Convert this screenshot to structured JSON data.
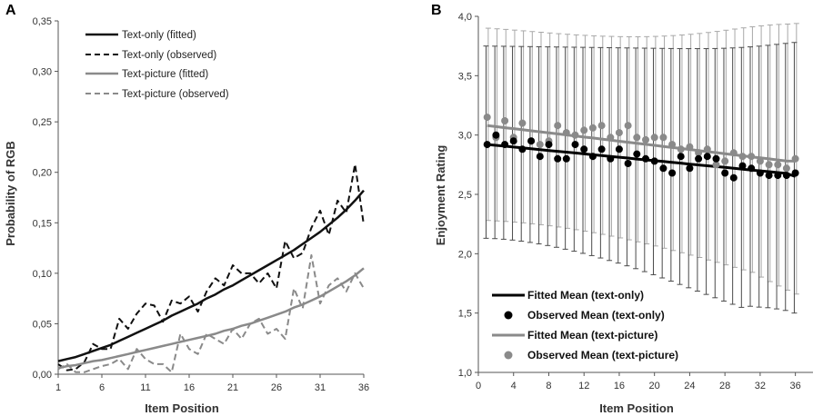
{
  "figure": {
    "panels": [
      "A",
      "B"
    ]
  },
  "chart_data": [
    {
      "panel": "A",
      "type": "line",
      "title": "",
      "xlabel": "Item Position",
      "ylabel": "Probability of RGB",
      "xlim": [
        1,
        36
      ],
      "ylim": [
        0,
        0.35
      ],
      "xticks": [
        "1",
        "6",
        "11",
        "16",
        "21",
        "26",
        "31",
        "36"
      ],
      "xtick_values": [
        1,
        6,
        11,
        16,
        21,
        26,
        31,
        36
      ],
      "yticks": [
        "0,00",
        "0,05",
        "0,10",
        "0,15",
        "0,20",
        "0,25",
        "0,30",
        "0,35"
      ],
      "ytick_values": [
        0,
        0.05,
        0.1,
        0.15,
        0.2,
        0.25,
        0.3,
        0.35
      ],
      "legend_position": "top-left",
      "x": [
        1,
        2,
        3,
        4,
        5,
        6,
        7,
        8,
        9,
        10,
        11,
        12,
        13,
        14,
        15,
        16,
        17,
        18,
        19,
        20,
        21,
        22,
        23,
        24,
        25,
        26,
        27,
        28,
        29,
        30,
        31,
        32,
        33,
        34,
        35,
        36
      ],
      "series": [
        {
          "name": "Text-only (fitted)",
          "color": "#111111",
          "dash": "solid",
          "values": [
            0.013,
            0.015,
            0.017,
            0.02,
            0.023,
            0.026,
            0.029,
            0.033,
            0.037,
            0.041,
            0.045,
            0.049,
            0.053,
            0.058,
            0.062,
            0.066,
            0.07,
            0.075,
            0.079,
            0.084,
            0.088,
            0.093,
            0.098,
            0.103,
            0.108,
            0.113,
            0.118,
            0.123,
            0.129,
            0.135,
            0.141,
            0.148,
            0.155,
            0.163,
            0.172,
            0.182
          ]
        },
        {
          "name": "Text-only (observed)",
          "color": "#111111",
          "dash": "dashed",
          "values": [
            0.01,
            0.004,
            0.005,
            0.012,
            0.03,
            0.025,
            0.025,
            0.055,
            0.045,
            0.06,
            0.07,
            0.068,
            0.052,
            0.073,
            0.07,
            0.077,
            0.062,
            0.082,
            0.095,
            0.088,
            0.108,
            0.1,
            0.1,
            0.09,
            0.1,
            0.085,
            0.132,
            0.115,
            0.12,
            0.145,
            0.162,
            0.138,
            0.172,
            0.16,
            0.208,
            0.148
          ]
        },
        {
          "name": "Text-picture (fitted)",
          "color": "#8a8a8a",
          "dash": "solid",
          "values": [
            0.006,
            0.008,
            0.009,
            0.011,
            0.013,
            0.014,
            0.016,
            0.018,
            0.02,
            0.022,
            0.024,
            0.026,
            0.028,
            0.03,
            0.032,
            0.034,
            0.036,
            0.038,
            0.04,
            0.043,
            0.045,
            0.048,
            0.05,
            0.053,
            0.056,
            0.059,
            0.062,
            0.066,
            0.069,
            0.073,
            0.077,
            0.082,
            0.087,
            0.092,
            0.098,
            0.105
          ]
        },
        {
          "name": "Text-picture (observed)",
          "color": "#8a8a8a",
          "dash": "dashed",
          "values": [
            0.005,
            0.01,
            0.002,
            0.002,
            0.005,
            0.008,
            0.01,
            0.015,
            0.005,
            0.025,
            0.015,
            0.01,
            0.01,
            0.002,
            0.04,
            0.025,
            0.02,
            0.04,
            0.035,
            0.03,
            0.045,
            0.035,
            0.05,
            0.055,
            0.04,
            0.045,
            0.035,
            0.085,
            0.065,
            0.118,
            0.07,
            0.088,
            0.095,
            0.082,
            0.1,
            0.085
          ]
        }
      ]
    },
    {
      "panel": "B",
      "type": "scatter",
      "title": "",
      "xlabel": "Item Position",
      "ylabel": "Enjoyment Rating",
      "xlim": [
        0,
        38
      ],
      "ylim": [
        1,
        4
      ],
      "xticks": [
        "0",
        "4",
        "8",
        "12",
        "16",
        "20",
        "24",
        "28",
        "32",
        "36"
      ],
      "xtick_values": [
        0,
        4,
        8,
        12,
        16,
        20,
        24,
        28,
        32,
        36
      ],
      "yticks": [
        "1,0",
        "1,5",
        "2,0",
        "2,5",
        "3,0",
        "3,5",
        "4,0"
      ],
      "ytick_values": [
        1,
        1.5,
        2,
        2.5,
        3,
        3.5,
        4
      ],
      "legend_position": "bottom-left",
      "x": [
        1,
        2,
        3,
        4,
        5,
        6,
        7,
        8,
        9,
        10,
        11,
        12,
        13,
        14,
        15,
        16,
        17,
        18,
        19,
        20,
        21,
        22,
        23,
        24,
        25,
        26,
        27,
        28,
        29,
        30,
        31,
        32,
        33,
        34,
        35,
        36
      ],
      "series": [
        {
          "name": "Fitted Mean (text-only)",
          "color": "#000000",
          "kind": "line",
          "values": [
            2.92,
            2.913,
            2.906,
            2.899,
            2.892,
            2.884,
            2.877,
            2.87,
            2.863,
            2.856,
            2.849,
            2.841,
            2.834,
            2.827,
            2.82,
            2.813,
            2.806,
            2.798,
            2.791,
            2.784,
            2.777,
            2.77,
            2.763,
            2.755,
            2.748,
            2.741,
            2.734,
            2.727,
            2.72,
            2.712,
            2.705,
            2.698,
            2.691,
            2.684,
            2.677,
            2.65
          ],
          "error_upper": [
            3.75,
            3.749,
            3.748,
            3.747,
            3.746,
            3.745,
            3.744,
            3.743,
            3.742,
            3.741,
            3.74,
            3.739,
            3.738,
            3.737,
            3.736,
            3.735,
            3.734,
            3.733,
            3.732,
            3.731,
            3.73,
            3.729,
            3.728,
            3.728,
            3.728,
            3.728,
            3.729,
            3.731,
            3.734,
            3.738,
            3.743,
            3.749,
            3.756,
            3.764,
            3.772,
            3.78
          ],
          "error_lower": [
            2.13,
            2.127,
            2.122,
            2.115,
            2.106,
            2.095,
            2.083,
            2.069,
            2.054,
            2.038,
            2.021,
            2.003,
            1.984,
            1.964,
            1.943,
            1.921,
            1.898,
            1.874,
            1.849,
            1.823,
            1.796,
            1.769,
            1.741,
            1.713,
            1.685,
            1.657,
            1.629,
            1.601,
            1.574,
            1.548,
            1.557,
            1.55,
            1.545,
            1.535,
            1.522,
            1.5
          ]
        },
        {
          "name": "Observed Mean (text-only)",
          "color": "#000000",
          "kind": "points",
          "values": [
            2.92,
            3.0,
            2.92,
            2.95,
            2.88,
            2.95,
            2.82,
            2.92,
            2.8,
            2.8,
            2.92,
            2.88,
            2.82,
            2.88,
            2.8,
            2.88,
            2.76,
            2.84,
            2.8,
            2.78,
            2.72,
            2.68,
            2.82,
            2.72,
            2.8,
            2.82,
            2.8,
            2.68,
            2.64,
            2.74,
            2.72,
            2.68,
            2.66,
            2.66,
            2.66,
            2.68
          ]
        },
        {
          "name": "Fitted Mean (text-picture)",
          "color": "#8a8a8a",
          "kind": "line",
          "values": [
            3.08,
            3.071,
            3.062,
            3.054,
            3.045,
            3.036,
            3.027,
            3.018,
            3.01,
            3.001,
            2.992,
            2.983,
            2.975,
            2.966,
            2.957,
            2.948,
            2.939,
            2.931,
            2.922,
            2.913,
            2.904,
            2.895,
            2.887,
            2.878,
            2.869,
            2.86,
            2.852,
            2.843,
            2.834,
            2.825,
            2.816,
            2.808,
            2.799,
            2.79,
            2.781,
            2.78
          ],
          "error_upper": [
            3.9,
            3.895,
            3.89,
            3.884,
            3.878,
            3.872,
            3.866,
            3.86,
            3.854,
            3.849,
            3.844,
            3.84,
            3.836,
            3.833,
            3.831,
            3.829,
            3.828,
            3.828,
            3.829,
            3.831,
            3.834,
            3.838,
            3.843,
            3.849,
            3.856,
            3.864,
            3.873,
            3.883,
            3.893,
            3.903,
            3.912,
            3.92,
            3.927,
            3.932,
            3.935,
            3.94
          ],
          "error_lower": [
            2.28,
            2.276,
            2.272,
            2.266,
            2.26,
            2.252,
            2.244,
            2.235,
            2.225,
            2.214,
            2.202,
            2.19,
            2.177,
            2.163,
            2.148,
            2.133,
            2.117,
            2.1,
            2.083,
            2.065,
            2.046,
            2.027,
            2.008,
            1.988,
            1.968,
            1.947,
            1.927,
            1.906,
            1.885,
            1.864,
            1.843,
            1.803,
            1.765,
            1.728,
            1.693,
            1.66
          ]
        },
        {
          "name": "Observed Mean (text-picture)",
          "color": "#8a8a8a",
          "kind": "points",
          "values": [
            3.15,
            2.98,
            3.12,
            2.98,
            3.1,
            2.95,
            2.92,
            2.95,
            3.08,
            3.02,
            3.0,
            3.04,
            3.06,
            3.08,
            2.98,
            3.02,
            3.08,
            2.98,
            2.96,
            2.98,
            2.98,
            2.92,
            2.88,
            2.9,
            2.85,
            2.88,
            2.75,
            2.78,
            2.85,
            2.82,
            2.82,
            2.78,
            2.75,
            2.75,
            2.72,
            2.8
          ]
        }
      ]
    }
  ]
}
